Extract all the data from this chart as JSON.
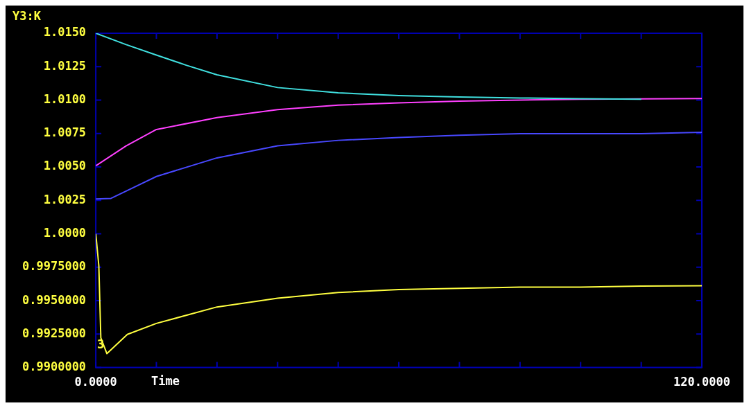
{
  "chart_data": {
    "type": "line",
    "ylabel": "Y3:K",
    "xlabel": "Time",
    "xlim": [
      0,
      120
    ],
    "ylim": [
      0.99,
      1.015
    ],
    "xticks": [
      {
        "value": 0,
        "label": "0.0000"
      },
      {
        "value": 12,
        "label": null
      },
      {
        "value": 24,
        "label": null
      },
      {
        "value": 36,
        "label": null
      },
      {
        "value": 48,
        "label": null
      },
      {
        "value": 60,
        "label": null
      },
      {
        "value": 72,
        "label": null
      },
      {
        "value": 84,
        "label": null
      },
      {
        "value": 96,
        "label": null
      },
      {
        "value": 108,
        "label": null
      },
      {
        "value": 120,
        "label": "120.0000"
      }
    ],
    "yticks": [
      {
        "value": 0.99,
        "label": "0.9900000"
      },
      {
        "value": 0.9925,
        "label": "0.9925000"
      },
      {
        "value": 0.995,
        "label": "0.9950000"
      },
      {
        "value": 0.9975,
        "label": "0.9975000"
      },
      {
        "value": 1,
        "label": "1.0000"
      },
      {
        "value": 1.0025,
        "label": "1.0025"
      },
      {
        "value": 1.005,
        "label": "1.0050"
      },
      {
        "value": 1.0075,
        "label": "1.0075"
      },
      {
        "value": 1.01,
        "label": "1.0100"
      },
      {
        "value": 1.0125,
        "label": "1.0125"
      },
      {
        "value": 1.015,
        "label": "1.0150"
      }
    ],
    "series": [
      {
        "color": "#40e0e0",
        "x": [
          0,
          6,
          12,
          18,
          24,
          36,
          48,
          60,
          72,
          84,
          96,
          108
        ],
        "values": [
          1.015,
          1.01415,
          1.01337,
          1.0126,
          1.01189,
          1.01094,
          1.01054,
          1.01034,
          1.01024,
          1.01016,
          1.01011,
          1.01006
        ]
      },
      {
        "color": "#ff40ff",
        "x": [
          0,
          6,
          12,
          24,
          36,
          48,
          60,
          72,
          84,
          96,
          108,
          120
        ],
        "values": [
          1.00509,
          1.00658,
          1.0078,
          1.00869,
          1.00929,
          1.00962,
          1.00979,
          1.00992,
          1.01,
          1.01006,
          1.01009,
          1.01012
        ]
      },
      {
        "color": "#4848ff",
        "x": [
          0,
          3,
          6,
          12,
          24,
          36,
          48,
          60,
          72,
          84,
          96,
          108,
          120
        ],
        "values": [
          1.0026,
          1.00265,
          1.0032,
          1.00429,
          1.00568,
          1.00658,
          1.00699,
          1.00721,
          1.00737,
          1.00749,
          1.00749,
          1.00749,
          1.00759
        ]
      },
      {
        "color": "#ffff40",
        "x": [
          0,
          0.6,
          1,
          2.2,
          6.25,
          12,
          24,
          36,
          48,
          60,
          72,
          84,
          96,
          108,
          120
        ],
        "values": [
          1.0,
          0.99762,
          0.99222,
          0.99104,
          0.99248,
          0.9933,
          0.99453,
          0.99519,
          0.99561,
          0.99583,
          0.99593,
          0.99601,
          0.99601,
          0.99609,
          0.99612
        ]
      }
    ],
    "annotations": [
      "3"
    ]
  }
}
